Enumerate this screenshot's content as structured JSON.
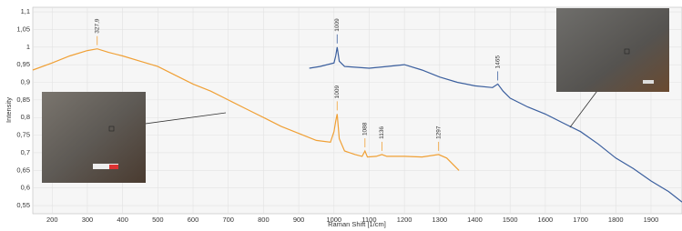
{
  "chart_data": {
    "type": "line",
    "x_label": "Raman Shift [1/cm]",
    "y_label": "Intensity",
    "xlim": [
      145,
      1988
    ],
    "ylim": [
      0.527,
      1.113
    ],
    "xticks": [
      200,
      300,
      400,
      500,
      600,
      700,
      800,
      900,
      1000,
      1100,
      1200,
      1300,
      1400,
      1500,
      1600,
      1700,
      1800,
      1900
    ],
    "yticks": [
      {
        "value": 0.55,
        "label": "0,55"
      },
      {
        "value": 0.6,
        "label": "0,6"
      },
      {
        "value": 0.65,
        "label": "0,65"
      },
      {
        "value": 0.7,
        "label": "0,7"
      },
      {
        "value": 0.75,
        "label": "0,75"
      },
      {
        "value": 0.8,
        "label": "0,8"
      },
      {
        "value": 0.85,
        "label": "0,85"
      },
      {
        "value": 0.9,
        "label": "0,9"
      },
      {
        "value": 0.95,
        "label": "0,95"
      },
      {
        "value": 1,
        "label": "1"
      },
      {
        "value": 1.05,
        "label": "1,05"
      },
      {
        "value": 1.1,
        "label": "1,1"
      }
    ],
    "grid": true,
    "series": [
      {
        "color": "#f0a035",
        "x": [
          145,
          200,
          250,
          300,
          327.9,
          360,
          400,
          450,
          500,
          550,
          600,
          650,
          700,
          750,
          800,
          850,
          900,
          950,
          990,
          1000,
          1005,
          1009,
          1015,
          1030,
          1060,
          1080,
          1088,
          1095,
          1120,
          1136,
          1150,
          1200,
          1250,
          1297,
          1320,
          1355
        ],
        "values": [
          0.935,
          0.955,
          0.975,
          0.99,
          0.995,
          0.985,
          0.975,
          0.96,
          0.945,
          0.92,
          0.895,
          0.875,
          0.85,
          0.825,
          0.8,
          0.775,
          0.755,
          0.735,
          0.73,
          0.76,
          0.79,
          0.81,
          0.74,
          0.705,
          0.695,
          0.69,
          0.705,
          0.688,
          0.69,
          0.695,
          0.69,
          0.69,
          0.688,
          0.695,
          0.685,
          0.65
        ],
        "peaks": [
          {
            "value": 327.9,
            "label": "327,9"
          },
          {
            "value": 1009,
            "label": "1009"
          },
          {
            "value": 1088,
            "label": "1088"
          },
          {
            "value": 1136,
            "label": "1136"
          },
          {
            "value": 1297,
            "label": "1297"
          }
        ]
      },
      {
        "color": "#3b5f9e",
        "x": [
          930,
          960,
          1000,
          1005,
          1009,
          1015,
          1030,
          1100,
          1150,
          1200,
          1250,
          1300,
          1350,
          1400,
          1450,
          1465,
          1480,
          1500,
          1550,
          1600,
          1650,
          1700,
          1750,
          1800,
          1850,
          1900,
          1950,
          1988
        ],
        "values": [
          0.94,
          0.945,
          0.955,
          0.975,
          1.0,
          0.96,
          0.945,
          0.94,
          0.945,
          0.95,
          0.935,
          0.915,
          0.9,
          0.89,
          0.885,
          0.895,
          0.875,
          0.855,
          0.83,
          0.81,
          0.785,
          0.76,
          0.725,
          0.685,
          0.655,
          0.62,
          0.59,
          0.56
        ],
        "peaks": [
          {
            "value": 1009,
            "label": "1009"
          },
          {
            "value": 1465,
            "label": "1465"
          }
        ]
      }
    ]
  }
}
